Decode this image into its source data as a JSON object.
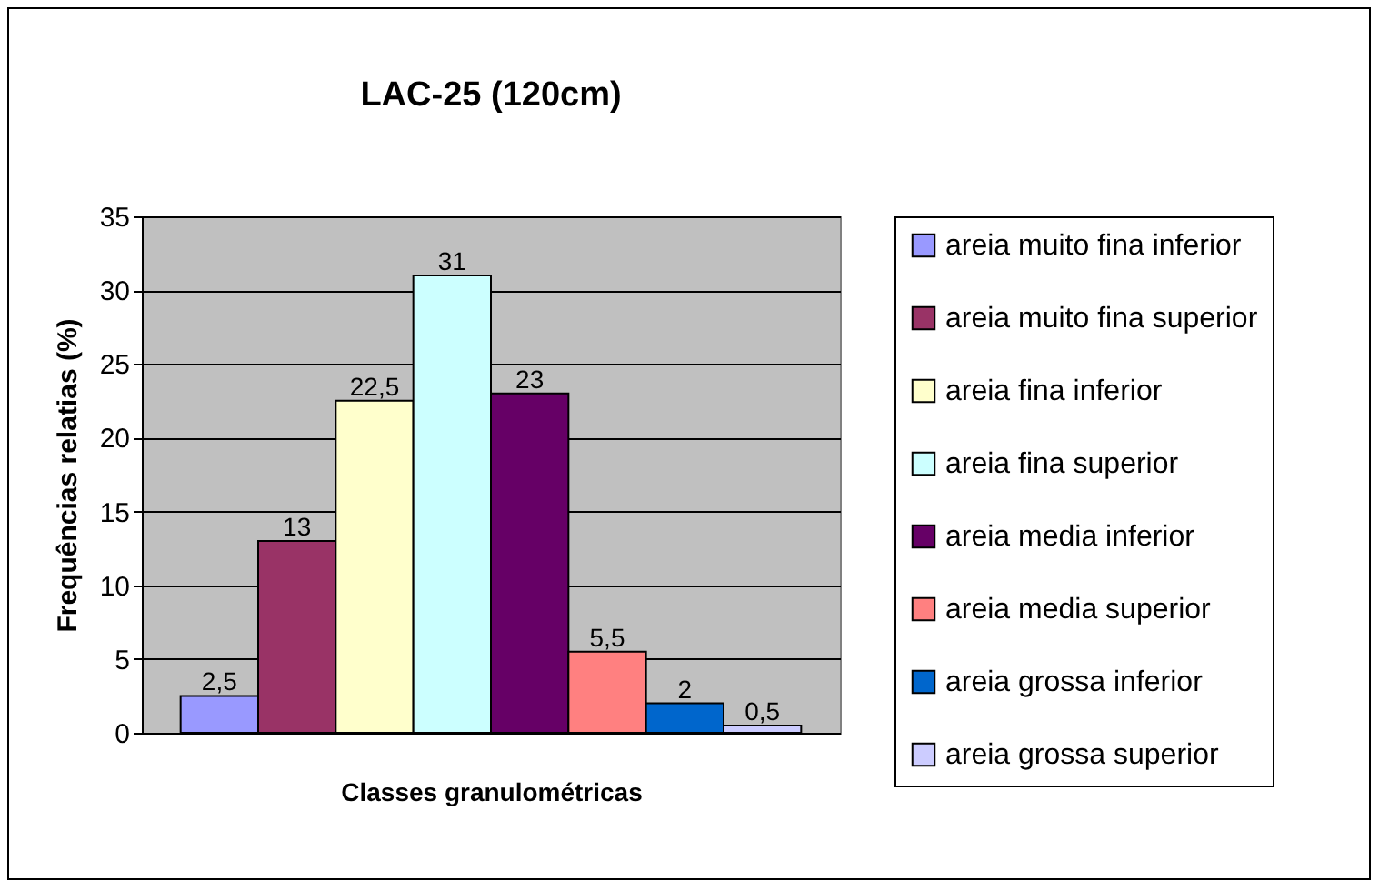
{
  "chart_data": {
    "type": "bar",
    "title": "LAC-25 (120cm)",
    "xlabel": "Classes granulométricas",
    "ylabel": "Frequências relatias (%)",
    "categories": [
      null
    ],
    "series": [
      {
        "name": "areia muito fina inferior",
        "color": "#9999ff",
        "values": [
          2.5
        ],
        "value_labels": [
          "2,5"
        ]
      },
      {
        "name": "areia muito fina superior",
        "color": "#993366",
        "values": [
          13
        ],
        "value_labels": [
          "13"
        ]
      },
      {
        "name": "areia fina inferior",
        "color": "#ffffcc",
        "values": [
          22.5
        ],
        "value_labels": [
          "22,5"
        ]
      },
      {
        "name": "areia fina superior",
        "color": "#ccffff",
        "values": [
          31
        ],
        "value_labels": [
          "31"
        ]
      },
      {
        "name": "areia media inferior",
        "color": "#660066",
        "values": [
          23
        ],
        "value_labels": [
          "23"
        ]
      },
      {
        "name": "areia media superior",
        "color": "#ff8080",
        "values": [
          5.5
        ],
        "value_labels": [
          "5,5"
        ]
      },
      {
        "name": "areia grossa inferior",
        "color": "#0066cc",
        "values": [
          2
        ],
        "value_labels": [
          "2"
        ]
      },
      {
        "name": "areia grossa superior",
        "color": "#ccccff",
        "values": [
          0.5
        ],
        "value_labels": [
          "0,5"
        ]
      }
    ],
    "ylim": [
      0,
      35
    ],
    "yticks": [
      0,
      5,
      10,
      15,
      20,
      25,
      30,
      35
    ],
    "grid": "y",
    "legend": "right"
  }
}
